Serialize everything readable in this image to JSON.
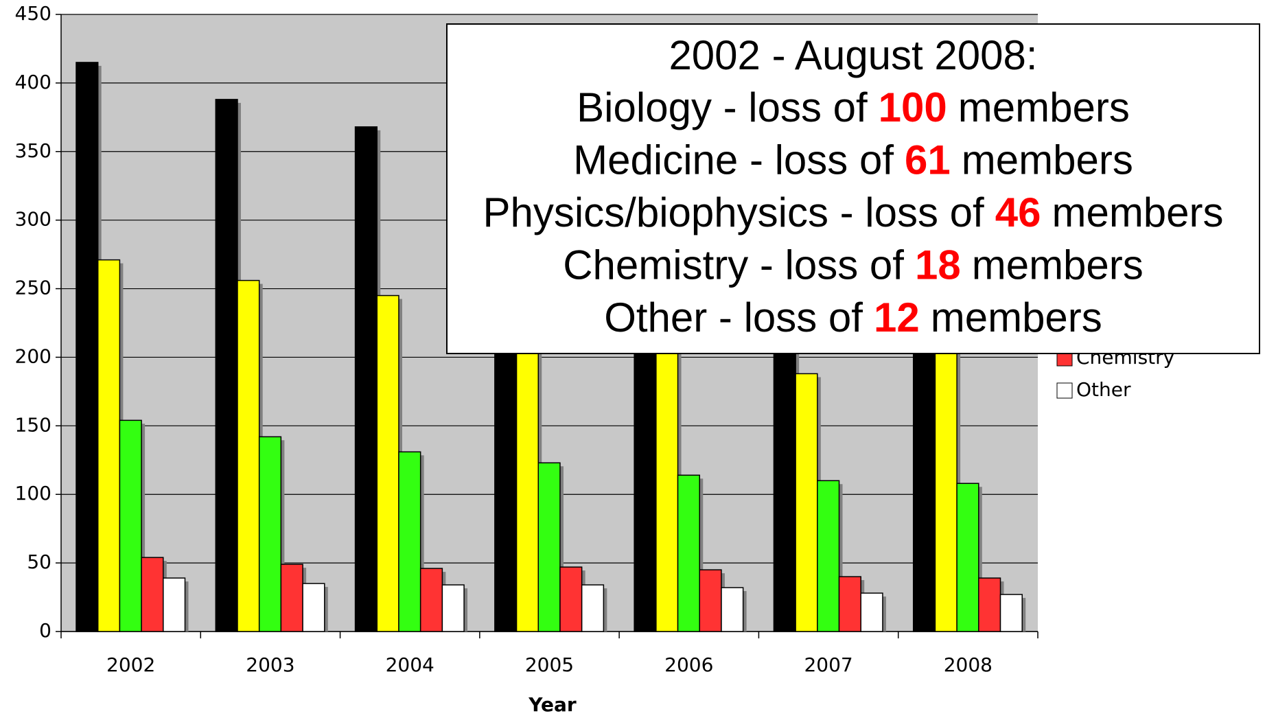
{
  "chart_data": {
    "type": "bar",
    "categories": [
      "2002",
      "2003",
      "2004",
      "2005",
      "2006",
      "2007",
      "2008"
    ],
    "series": [
      {
        "color": "#000000",
        "values": [
          415,
          388,
          368,
          350,
          335,
          320,
          315
        ]
      },
      {
        "color": "#ffff00",
        "values": [
          271,
          256,
          245,
          230,
          212,
          188,
          210
        ]
      },
      {
        "color": "#33ff11",
        "values": [
          154,
          142,
          131,
          123,
          114,
          110,
          108
        ]
      },
      {
        "name": "Chemistry",
        "color": "#ff3333",
        "values": [
          54,
          49,
          46,
          47,
          45,
          40,
          39
        ]
      },
      {
        "name": "Other",
        "color": "#ffffff",
        "values": [
          39,
          35,
          34,
          34,
          32,
          28,
          27
        ]
      }
    ],
    "xlabel": "Year",
    "ylim": [
      0,
      450
    ],
    "yticks": [
      0,
      50,
      100,
      150,
      200,
      250,
      300,
      350,
      400,
      450
    ],
    "grid": true,
    "annotation": {
      "title": "2002 - August 2008:",
      "lines": [
        {
          "before": "Biology - loss of",
          "number": 100,
          "after": "members"
        },
        {
          "before": "Medicine - loss of",
          "number": 61,
          "after": "members"
        },
        {
          "before": "Physics/biophysics - loss of",
          "number": 46,
          "after": "members"
        },
        {
          "before": "Chemistry - loss of",
          "number": 18,
          "after": "members"
        },
        {
          "before": "Other - loss of",
          "number": 12,
          "after": "members"
        }
      ]
    }
  }
}
